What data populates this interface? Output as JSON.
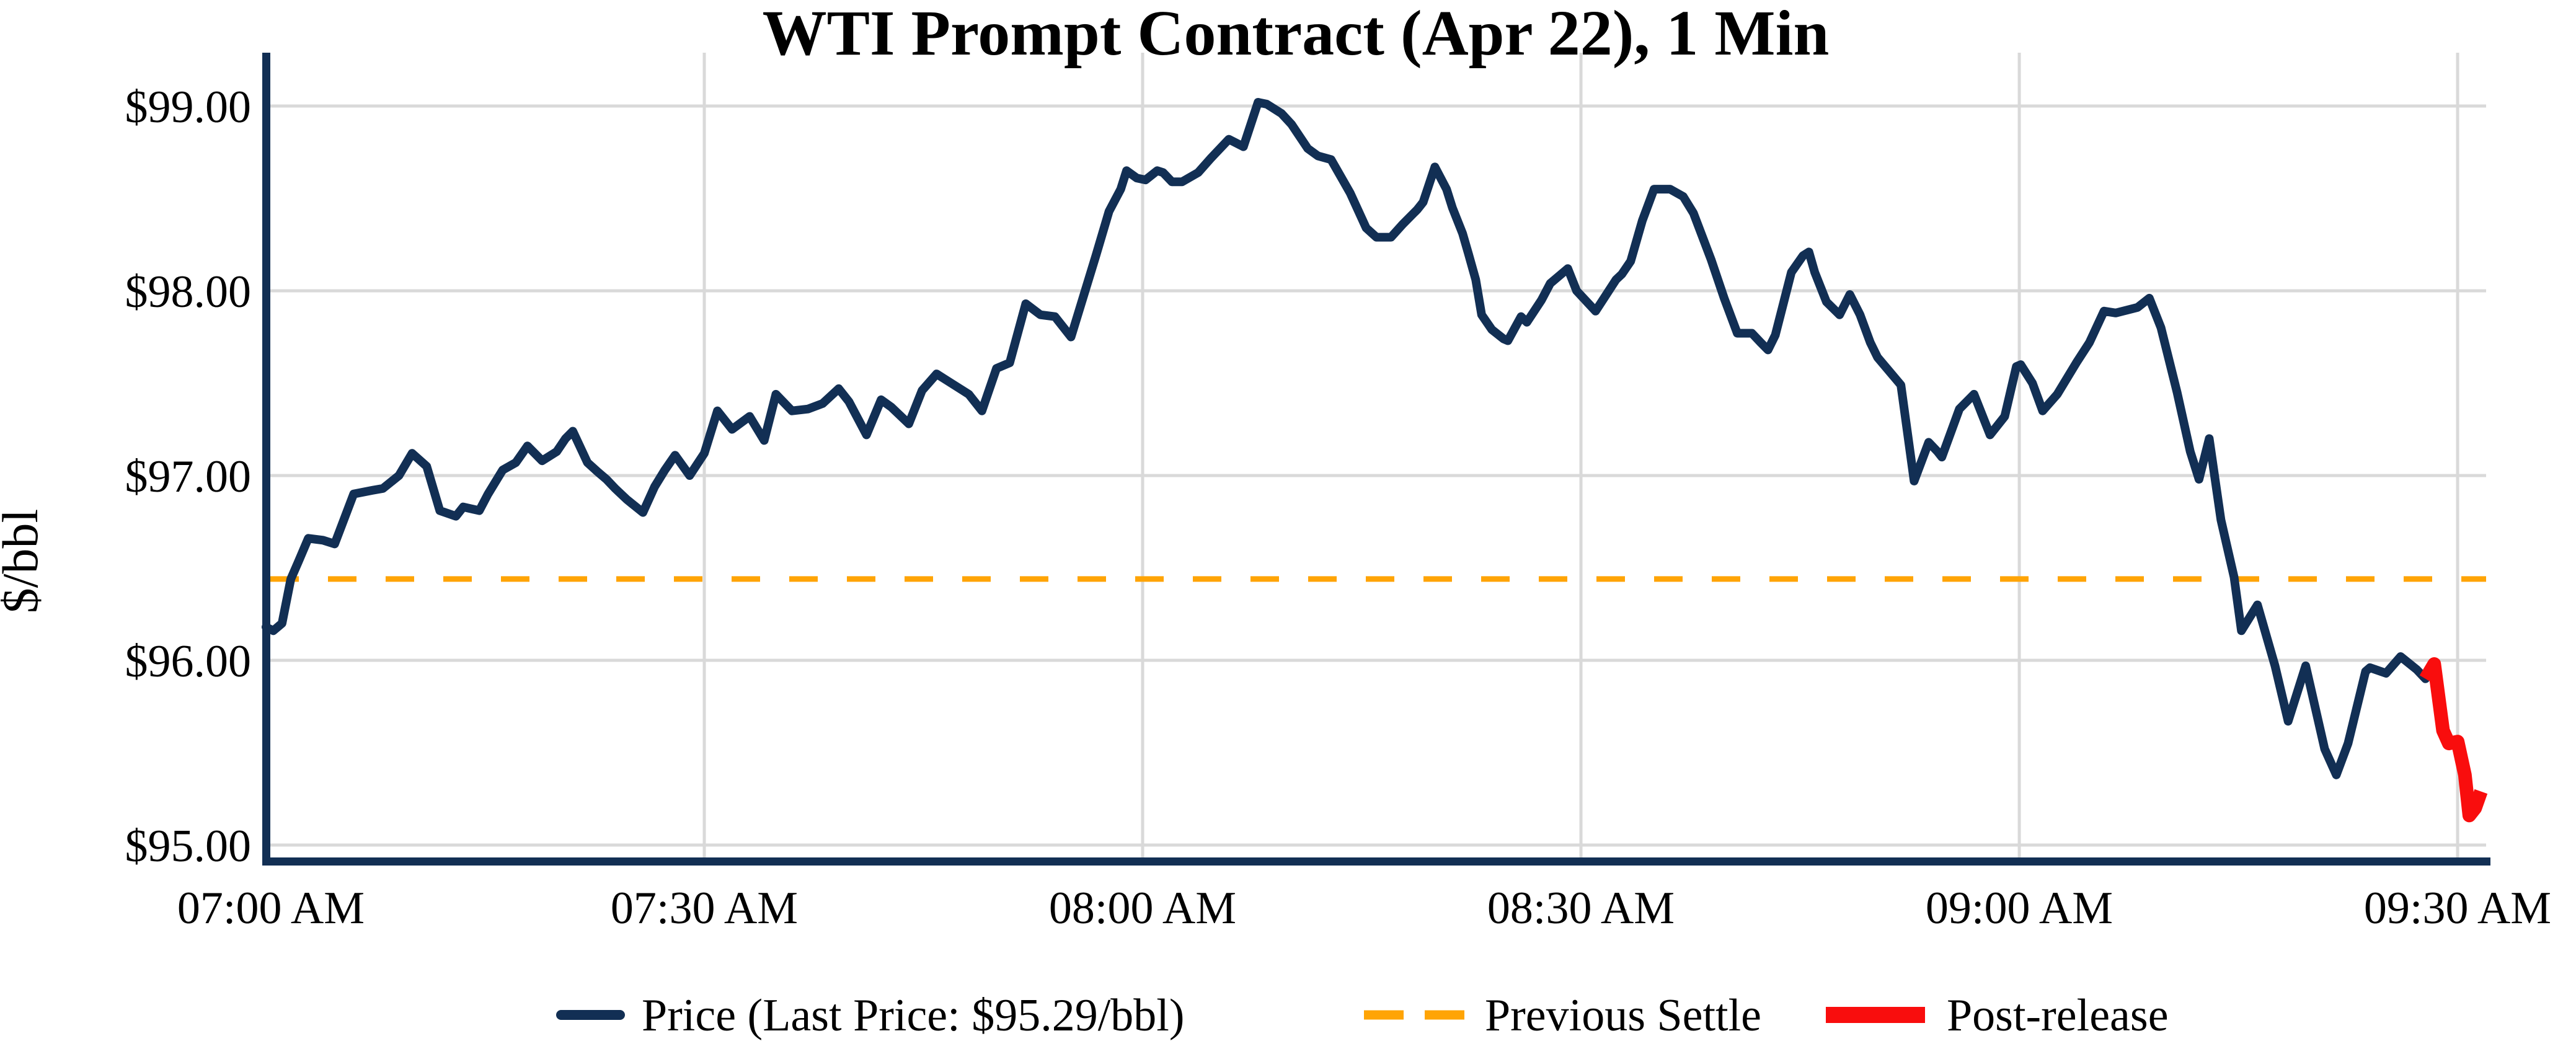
{
  "chart_data": {
    "type": "line",
    "title": "WTI Prompt Contract (Apr 22), 1 Min",
    "ylabel": "$/bbl",
    "xlabel": "",
    "grid": true,
    "legend_position": "bottom",
    "x_axis": {
      "unit": "minutes after 07:00 AM",
      "tick_minutes": [
        0,
        30,
        60,
        90,
        120,
        150
      ],
      "tick_labels": [
        "07:00 AM",
        "07:30 AM",
        "08:00 AM",
        "08:30 AM",
        "09:00 AM",
        "09:30 AM"
      ],
      "range_minutes": [
        0,
        152
      ]
    },
    "y_axis": {
      "tick_values": [
        95,
        96,
        97,
        98,
        99
      ],
      "tick_labels": [
        "$95.00",
        "$96.00",
        "$97.00",
        "$98.00",
        "$99.00"
      ],
      "range": [
        94.93,
        99.29
      ]
    },
    "previous_settle": {
      "label": "Previous Settle",
      "value": 96.44
    },
    "last_price": 95.29,
    "colors": {
      "price": "#122f54",
      "settle": "#ffa405",
      "post_release": "#f90d0d",
      "gridline": "#d9d9d9",
      "axis": "#122f54",
      "background": "#ffffff",
      "text": "#000000"
    },
    "series": [
      {
        "name": "Price",
        "legend_label": "Price (Last Price: $95.29/bbl)",
        "color": "#122f54",
        "width": 14,
        "points": [
          [
            0,
            96.18
          ],
          [
            0.5,
            96.16
          ],
          [
            1.1,
            96.2
          ],
          [
            1.7,
            96.44
          ],
          [
            2.2,
            96.53
          ],
          [
            2.9,
            96.66
          ],
          [
            3.9,
            96.65
          ],
          [
            4.7,
            96.63
          ],
          [
            6,
            96.9
          ],
          [
            7.3,
            96.92
          ],
          [
            8,
            96.93
          ],
          [
            9.1,
            97.0
          ],
          [
            10,
            97.12
          ],
          [
            11,
            97.05
          ],
          [
            11.9,
            96.81
          ],
          [
            13,
            96.78
          ],
          [
            13.5,
            96.83
          ],
          [
            14.6,
            96.81
          ],
          [
            15.2,
            96.9
          ],
          [
            16.2,
            97.03
          ],
          [
            17.1,
            97.07
          ],
          [
            17.9,
            97.16
          ],
          [
            18.9,
            97.08
          ],
          [
            19.9,
            97.13
          ],
          [
            20.5,
            97.2
          ],
          [
            21,
            97.24
          ],
          [
            22,
            97.07
          ],
          [
            22.7,
            97.02
          ],
          [
            23.3,
            96.98
          ],
          [
            23.9,
            96.93
          ],
          [
            24.7,
            96.87
          ],
          [
            25.8,
            96.8
          ],
          [
            26.6,
            96.94
          ],
          [
            27.3,
            97.03
          ],
          [
            28,
            97.11
          ],
          [
            29,
            97.0
          ],
          [
            30,
            97.12
          ],
          [
            30.9,
            97.35
          ],
          [
            31.9,
            97.25
          ],
          [
            33.1,
            97.32
          ],
          [
            34.1,
            97.19
          ],
          [
            34.9,
            97.44
          ],
          [
            36,
            97.35
          ],
          [
            37.1,
            97.36
          ],
          [
            38.1,
            97.39
          ],
          [
            39.2,
            97.47
          ],
          [
            39.9,
            97.4
          ],
          [
            41.1,
            97.22
          ],
          [
            42.1,
            97.41
          ],
          [
            42.8,
            97.37
          ],
          [
            44,
            97.28
          ],
          [
            44.9,
            97.46
          ],
          [
            45.9,
            97.55
          ],
          [
            47.1,
            97.49
          ],
          [
            48.1,
            97.44
          ],
          [
            49,
            97.35
          ],
          [
            50,
            97.58
          ],
          [
            50.9,
            97.61
          ],
          [
            52,
            97.93
          ],
          [
            53,
            97.87
          ],
          [
            54,
            97.86
          ],
          [
            55.1,
            97.75
          ],
          [
            56.8,
            98.19
          ],
          [
            57.7,
            98.43
          ],
          [
            58.5,
            98.55
          ],
          [
            58.9,
            98.65
          ],
          [
            59.6,
            98.61
          ],
          [
            60.2,
            98.6
          ],
          [
            61,
            98.65
          ],
          [
            61.4,
            98.64
          ],
          [
            62,
            98.59
          ],
          [
            62.7,
            98.59
          ],
          [
            63.8,
            98.64
          ],
          [
            64.7,
            98.72
          ],
          [
            65.9,
            98.82
          ],
          [
            66.9,
            98.78
          ],
          [
            67.9,
            99.02
          ],
          [
            68.5,
            99.01
          ],
          [
            69.5,
            98.96
          ],
          [
            70.2,
            98.9
          ],
          [
            71.3,
            98.77
          ],
          [
            72,
            98.73
          ],
          [
            72.9,
            98.71
          ],
          [
            74.2,
            98.53
          ],
          [
            75.3,
            98.34
          ],
          [
            76,
            98.29
          ],
          [
            77,
            98.29
          ],
          [
            77.8,
            98.36
          ],
          [
            78.8,
            98.44
          ],
          [
            79.2,
            98.48
          ],
          [
            80,
            98.67
          ],
          [
            80.8,
            98.55
          ],
          [
            81.2,
            98.45
          ],
          [
            81.9,
            98.31
          ],
          [
            82.3,
            98.2
          ],
          [
            82.8,
            98.06
          ],
          [
            83.2,
            97.87
          ],
          [
            83.9,
            97.79
          ],
          [
            84.7,
            97.74
          ],
          [
            85,
            97.73
          ],
          [
            85.9,
            97.86
          ],
          [
            86.3,
            97.83
          ],
          [
            87.3,
            97.95
          ],
          [
            87.9,
            98.04
          ],
          [
            89.1,
            98.12
          ],
          [
            89.7,
            98.0
          ],
          [
            91,
            97.89
          ],
          [
            92.4,
            98.06
          ],
          [
            92.8,
            98.09
          ],
          [
            93.4,
            98.16
          ],
          [
            94.2,
            98.38
          ],
          [
            95,
            98.55
          ],
          [
            96.1,
            98.55
          ],
          [
            97,
            98.51
          ],
          [
            97.7,
            98.42
          ],
          [
            98.9,
            98.17
          ],
          [
            99.8,
            97.96
          ],
          [
            100.7,
            97.77
          ],
          [
            101.7,
            97.77
          ],
          [
            102.3,
            97.72
          ],
          [
            102.8,
            97.68
          ],
          [
            103.3,
            97.76
          ],
          [
            104.4,
            98.1
          ],
          [
            105.2,
            98.19
          ],
          [
            105.6,
            98.21
          ],
          [
            106,
            98.1
          ],
          [
            106.8,
            97.94
          ],
          [
            107.7,
            97.87
          ],
          [
            108.4,
            97.98
          ],
          [
            109.1,
            97.87
          ],
          [
            109.8,
            97.72
          ],
          [
            110.3,
            97.64
          ],
          [
            111.9,
            97.49
          ],
          [
            112.8,
            96.97
          ],
          [
            113.8,
            97.18
          ],
          [
            114.4,
            97.13
          ],
          [
            114.7,
            97.1
          ],
          [
            115.9,
            97.36
          ],
          [
            116.9,
            97.44
          ],
          [
            118,
            97.22
          ],
          [
            119,
            97.32
          ],
          [
            119.8,
            97.59
          ],
          [
            120.1,
            97.6
          ],
          [
            120.9,
            97.5
          ],
          [
            121.6,
            97.35
          ],
          [
            122.6,
            97.44
          ],
          [
            123.9,
            97.61
          ],
          [
            124.8,
            97.72
          ],
          [
            125.8,
            97.89
          ],
          [
            126.6,
            97.88
          ],
          [
            128.1,
            97.91
          ],
          [
            128.9,
            97.96
          ],
          [
            129.7,
            97.8
          ],
          [
            130.8,
            97.45
          ],
          [
            131.7,
            97.13
          ],
          [
            132.3,
            96.98
          ],
          [
            133,
            97.2
          ],
          [
            133.8,
            96.76
          ],
          [
            134.7,
            96.45
          ],
          [
            135.2,
            96.16
          ],
          [
            136.3,
            96.3
          ],
          [
            137.5,
            95.97
          ],
          [
            138.4,
            95.67
          ],
          [
            139.6,
            95.97
          ],
          [
            140.9,
            95.52
          ],
          [
            141.7,
            95.38
          ],
          [
            142.5,
            95.55
          ],
          [
            143.7,
            95.94
          ],
          [
            144,
            95.96
          ],
          [
            145.1,
            95.93
          ],
          [
            146.1,
            96.02
          ],
          [
            147.2,
            95.95
          ],
          [
            147.8,
            95.9
          ]
        ]
      },
      {
        "name": "Post-release",
        "legend_label": "Post-release",
        "color": "#f90d0d",
        "width": 22,
        "points": [
          [
            147.8,
            95.9
          ],
          [
            148.4,
            95.98
          ],
          [
            149.0,
            95.62
          ],
          [
            149.4,
            95.55
          ],
          [
            150.0,
            95.56
          ],
          [
            150.5,
            95.38
          ],
          [
            150.8,
            95.16
          ],
          [
            151.2,
            95.2
          ],
          [
            151.6,
            95.29
          ]
        ]
      }
    ]
  }
}
